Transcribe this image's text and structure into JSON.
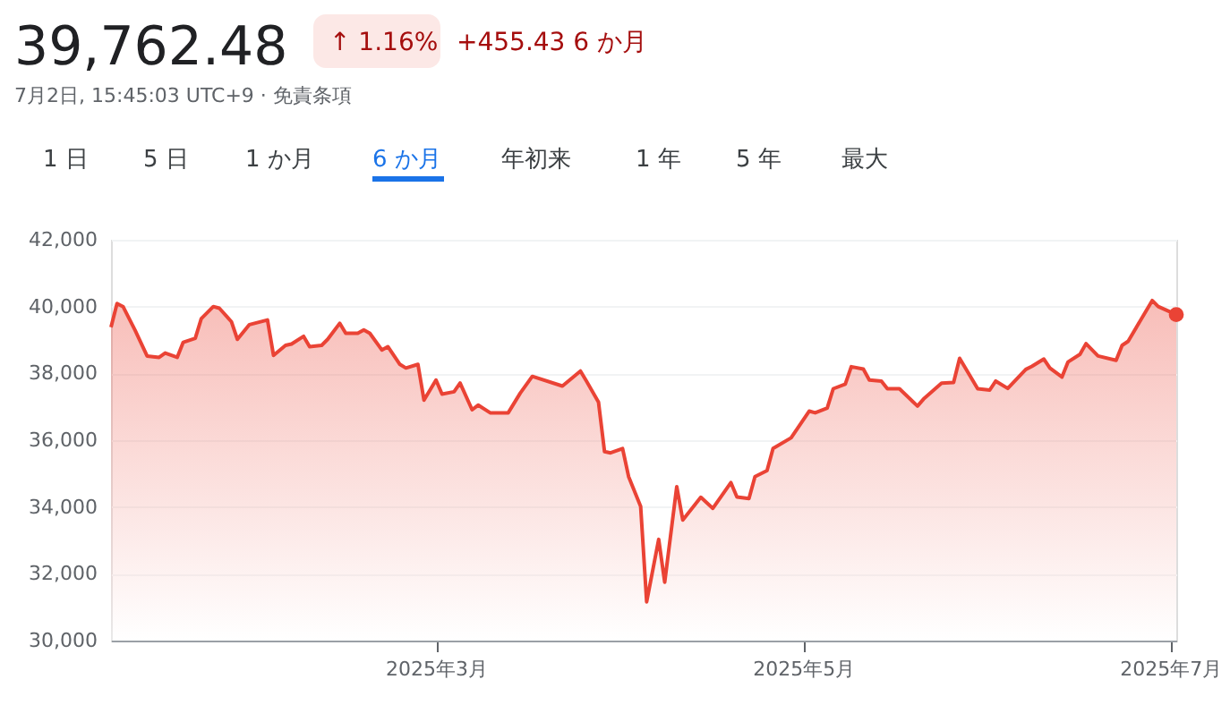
{
  "chart_data": {
    "type": "area",
    "title": "39,762.48",
    "annotations": [
      "↑ 1.16%",
      "+455.43 6 か月",
      "7月2日, 15:45:03 UTC+9 · 免責条項",
      "1 日",
      "5 日",
      "1 か月",
      "6 か月",
      "年初来",
      "1 年",
      "5 年",
      "最大"
    ],
    "x": [
      "2025-01-06",
      "2025-01-07",
      "2025-01-08",
      "2025-01-10",
      "2025-01-12",
      "2025-01-14",
      "2025-01-15",
      "2025-01-17",
      "2025-01-18",
      "2025-01-20",
      "2025-01-21",
      "2025-01-23",
      "2025-01-24",
      "2025-01-26",
      "2025-01-27",
      "2025-01-29",
      "2025-02-01",
      "2025-02-02",
      "2025-02-04",
      "2025-02-05",
      "2025-02-07",
      "2025-02-08",
      "2025-02-10",
      "2025-02-11",
      "2025-02-13",
      "2025-02-14",
      "2025-02-16",
      "2025-02-17",
      "2025-02-18",
      "2025-02-20",
      "2025-02-21",
      "2025-02-23",
      "2025-02-24",
      "2025-02-26",
      "2025-02-27",
      "2025-03-01",
      "2025-03-02",
      "2025-03-04",
      "2025-03-05",
      "2025-03-07",
      "2025-03-08",
      "2025-03-10",
      "2025-03-13",
      "2025-03-15",
      "2025-03-17",
      "2025-03-22",
      "2025-03-25",
      "2025-03-26",
      "2025-03-28",
      "2025-03-29",
      "2025-03-30",
      "2025-04-01",
      "2025-04-02",
      "2025-04-04",
      "2025-04-05",
      "2025-04-07",
      "2025-04-08",
      "2025-04-10",
      "2025-04-11",
      "2025-04-14",
      "2025-04-16",
      "2025-04-19",
      "2025-04-20",
      "2025-04-22",
      "2025-04-23",
      "2025-04-25",
      "2025-04-26",
      "2025-04-29",
      "2025-05-02",
      "2025-05-03",
      "2025-05-05",
      "2025-05-06",
      "2025-05-08",
      "2025-05-09",
      "2025-05-11",
      "2025-05-12",
      "2025-05-14",
      "2025-05-15",
      "2025-05-17",
      "2025-05-20",
      "2025-05-21",
      "2025-05-24",
      "2025-05-26",
      "2025-05-27",
      "2025-05-30",
      "2025-06-01",
      "2025-06-02",
      "2025-06-04",
      "2025-06-07",
      "2025-06-08",
      "2025-06-10",
      "2025-06-11",
      "2025-06-13",
      "2025-06-14",
      "2025-06-16",
      "2025-06-17",
      "2025-06-19",
      "2025-06-22",
      "2025-06-23",
      "2025-06-24",
      "2025-06-28",
      "2025-06-29",
      "2025-07-02"
    ],
    "series": [
      {
        "color": "#ea4335",
        "values": [
          39380,
          40090,
          40000,
          39290,
          38520,
          38480,
          38610,
          38480,
          38930,
          39050,
          39640,
          40000,
          39950,
          39550,
          39020,
          39460,
          39600,
          38540,
          38840,
          38880,
          39110,
          38800,
          38840,
          39020,
          39500,
          39200,
          39200,
          39300,
          39200,
          38700,
          38800,
          38270,
          38160,
          38270,
          37200,
          37800,
          37380,
          37450,
          37710,
          36910,
          37050,
          36820,
          36820,
          37410,
          37910,
          37620,
          38070,
          37770,
          37140,
          35660,
          35620,
          35750,
          34910,
          34020,
          31160,
          33030,
          31750,
          34610,
          33610,
          34290,
          33960,
          34730,
          34300,
          34250,
          34910,
          35090,
          35750,
          36070,
          36870,
          36820,
          36960,
          37540,
          37680,
          38200,
          38130,
          37800,
          37770,
          37540,
          37540,
          37020,
          37230,
          37710,
          37730,
          38450,
          37540,
          37500,
          37770,
          37550,
          38120,
          38210,
          38430,
          38160,
          37890,
          38340,
          38570,
          38890,
          38520,
          38390,
          38840,
          38960,
          40180,
          40000,
          39760
        ]
      }
    ],
    "xlim": [
      "2025-01-06",
      "2025-07-02"
    ],
    "xticks": [
      {
        "value": "2025-03-01",
        "label": "2025年3月"
      },
      {
        "value": "2025-05-01",
        "label": "2025年5月"
      },
      {
        "value": "2025-07-01",
        "label": "2025年7月"
      }
    ],
    "ylim": [
      30000,
      42000
    ],
    "yticks": [
      {
        "value": 30000,
        "label": "30,000"
      },
      {
        "value": 32000,
        "label": "32,000"
      },
      {
        "value": 34000,
        "label": "34,000"
      },
      {
        "value": 36000,
        "label": "36,000"
      },
      {
        "value": 38000,
        "label": "38,000"
      },
      {
        "value": 40000,
        "label": "40,000"
      },
      {
        "value": 42000,
        "label": "42,000"
      }
    ],
    "grid": "y"
  }
}
